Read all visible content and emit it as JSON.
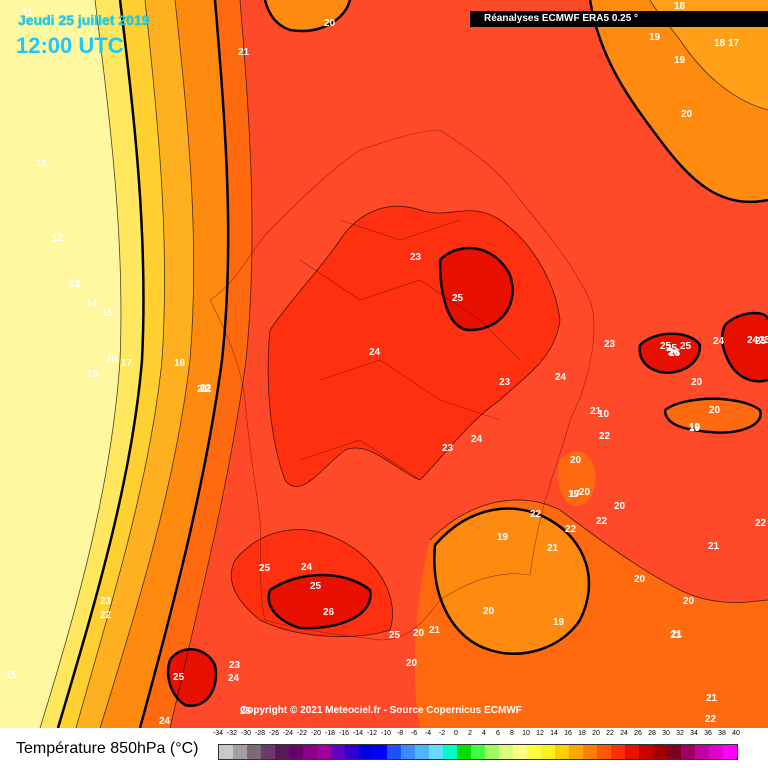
{
  "header": {
    "date": "Jeudi 25 juillet 2019",
    "time": "12:00 UTC",
    "source": "Réanalyses ECMWF ERA5 0.25 °"
  },
  "footer": {
    "copyright": "Copyright © 2021 Meteociel.fr - Source Copernicus ECMWF"
  },
  "legend": {
    "title": "Température 850hPa (°C)",
    "scale_values": [
      "-34",
      "-32",
      "-30",
      "-28",
      "-26",
      "-24",
      "-22",
      "-20",
      "-18",
      "-16",
      "-14",
      "-12",
      "-10",
      "-8",
      "-6",
      "-4",
      "-2",
      "0",
      "2",
      "4",
      "6",
      "8",
      "10",
      "12",
      "14",
      "16",
      "18",
      "20",
      "22",
      "24",
      "26",
      "28",
      "30",
      "32",
      "34",
      "36",
      "38",
      "40"
    ],
    "colors": [
      "#c8c8c8",
      "#a0a0a0",
      "#7a6a7a",
      "#6a3a6a",
      "#5a1a5a",
      "#6a006a",
      "#8a008a",
      "#a000a0",
      "#6000c0",
      "#3000d0",
      "#0000e0",
      "#0000ff",
      "#2050ff",
      "#3c8cff",
      "#50b4ff",
      "#64dcff",
      "#00ffc8",
      "#00e000",
      "#40ff40",
      "#a0ff60",
      "#d8ff80",
      "#ffff80",
      "#ffff40",
      "#fff020",
      "#ffd000",
      "#ffa800",
      "#ff8000",
      "#ff5800",
      "#ff3000",
      "#e81000",
      "#c80000",
      "#a00000",
      "#800020",
      "#a00060",
      "#c000a0",
      "#e000d0",
      "#ff00ff"
    ]
  },
  "contour_labels": [
    "11",
    "11",
    "12",
    "13",
    "14",
    "15",
    "15",
    "16",
    "17",
    "20",
    "21",
    "18",
    "19",
    "19",
    "18",
    "17",
    "20",
    "23",
    "25",
    "24",
    "23",
    "24",
    "23",
    "23",
    "24",
    "21",
    "10",
    "22",
    "20",
    "17",
    "20",
    "22",
    "22",
    "20",
    "22",
    "21",
    "19",
    "25",
    "24",
    "25",
    "26",
    "25",
    "20",
    "19",
    "23",
    "22",
    "21",
    "22",
    "25",
    "15",
    "23",
    "24",
    "24",
    "20",
    "20",
    "21",
    "21",
    "21",
    "22",
    "16",
    "19",
    "21",
    "22",
    "25",
    "24",
    "20",
    "19",
    "20",
    "26",
    "25",
    "24",
    "20",
    "22",
    "25",
    "25",
    "20",
    "19",
    "21",
    "25",
    "26",
    "25"
  ]
}
